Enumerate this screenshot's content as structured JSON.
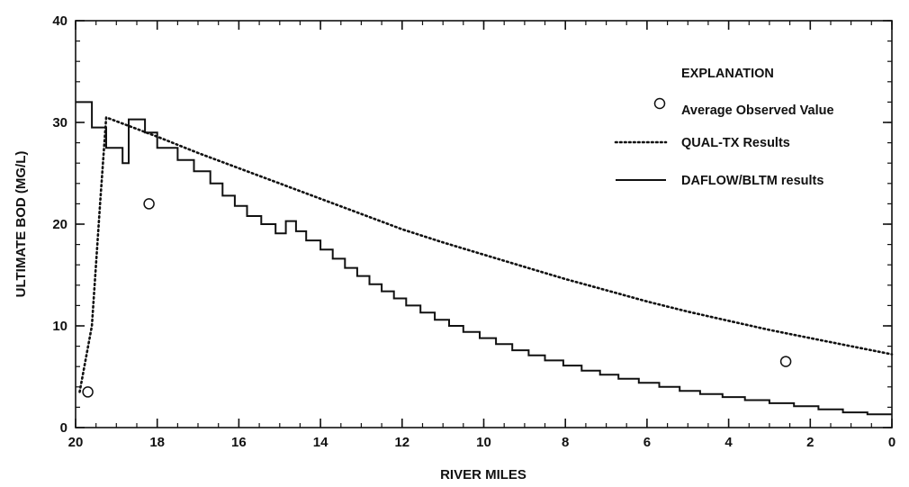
{
  "chart_data": {
    "type": "line",
    "xlabel": "RIVER MILES",
    "ylabel": "ULTIMATE BOD (MG/L)",
    "xlim": [
      20,
      0
    ],
    "ylim": [
      0,
      40
    ],
    "x_ticks": [
      20,
      18,
      16,
      14,
      12,
      10,
      8,
      6,
      4,
      2,
      0
    ],
    "y_ticks": [
      0,
      10,
      20,
      30,
      40
    ],
    "x_tick_labels": [
      "20",
      "18",
      "16",
      "14",
      "12",
      "10",
      "8",
      "6",
      "4",
      "2",
      "0"
    ],
    "y_tick_labels": [
      "0",
      "10",
      "20",
      "30",
      "40"
    ],
    "x_minor_step": 0.5,
    "y_minor_step": 2,
    "grid": false,
    "legend_title": "EXPLANATION",
    "legend_position": "top-right",
    "series": [
      {
        "name": "Average Observed Value",
        "style": "open-circle",
        "points": [
          [
            19.7,
            3.5
          ],
          [
            18.2,
            22
          ],
          [
            2.6,
            6.5
          ]
        ]
      },
      {
        "name": "QUAL-TX Results",
        "style": "dotted",
        "points": [
          [
            19.9,
            3.5
          ],
          [
            19.6,
            10
          ],
          [
            19.4,
            22
          ],
          [
            19.25,
            30.5
          ],
          [
            18,
            28.6
          ],
          [
            17,
            27
          ],
          [
            16,
            25.5
          ],
          [
            15,
            24
          ],
          [
            14,
            22.5
          ],
          [
            13,
            21
          ],
          [
            12,
            19.5
          ],
          [
            11,
            18.2
          ],
          [
            10,
            17
          ],
          [
            9,
            15.8
          ],
          [
            8,
            14.6
          ],
          [
            7,
            13.5
          ],
          [
            6,
            12.4
          ],
          [
            5,
            11.4
          ],
          [
            4,
            10.5
          ],
          [
            3,
            9.6
          ],
          [
            2,
            8.8
          ],
          [
            1,
            8
          ],
          [
            0,
            7.2
          ]
        ]
      },
      {
        "name": "DAFLOW/BLTM results",
        "style": "solid-step",
        "points": [
          [
            20,
            32
          ],
          [
            19.6,
            32
          ],
          [
            19.6,
            29.5
          ],
          [
            19.25,
            29.5
          ],
          [
            19.25,
            27.5
          ],
          [
            18.85,
            27.5
          ],
          [
            18.85,
            26
          ],
          [
            18.7,
            26
          ],
          [
            18.7,
            30.3
          ],
          [
            18.3,
            30.3
          ],
          [
            18.3,
            29
          ],
          [
            18,
            29
          ],
          [
            18,
            27.5
          ],
          [
            17.5,
            27.5
          ],
          [
            17.5,
            26.3
          ],
          [
            17.1,
            26.3
          ],
          [
            17.1,
            25.2
          ],
          [
            16.7,
            25.2
          ],
          [
            16.7,
            24
          ],
          [
            16.4,
            24
          ],
          [
            16.4,
            22.8
          ],
          [
            16.1,
            22.8
          ],
          [
            16.1,
            21.8
          ],
          [
            15.8,
            21.8
          ],
          [
            15.8,
            20.8
          ],
          [
            15.45,
            20.8
          ],
          [
            15.45,
            20
          ],
          [
            15.1,
            20
          ],
          [
            15.1,
            19.1
          ],
          [
            14.85,
            19.1
          ],
          [
            14.85,
            20.3
          ],
          [
            14.6,
            20.3
          ],
          [
            14.6,
            19.3
          ],
          [
            14.35,
            19.3
          ],
          [
            14.35,
            18.4
          ],
          [
            14,
            18.4
          ],
          [
            14,
            17.5
          ],
          [
            13.7,
            17.5
          ],
          [
            13.7,
            16.6
          ],
          [
            13.4,
            16.6
          ],
          [
            13.4,
            15.7
          ],
          [
            13.1,
            15.7
          ],
          [
            13.1,
            14.9
          ],
          [
            12.8,
            14.9
          ],
          [
            12.8,
            14.1
          ],
          [
            12.5,
            14.1
          ],
          [
            12.5,
            13.4
          ],
          [
            12.2,
            13.4
          ],
          [
            12.2,
            12.7
          ],
          [
            11.9,
            12.7
          ],
          [
            11.9,
            12
          ],
          [
            11.55,
            12
          ],
          [
            11.55,
            11.3
          ],
          [
            11.2,
            11.3
          ],
          [
            11.2,
            10.6
          ],
          [
            10.85,
            10.6
          ],
          [
            10.85,
            10
          ],
          [
            10.5,
            10
          ],
          [
            10.5,
            9.4
          ],
          [
            10.1,
            9.4
          ],
          [
            10.1,
            8.8
          ],
          [
            9.7,
            8.8
          ],
          [
            9.7,
            8.2
          ],
          [
            9.3,
            8.2
          ],
          [
            9.3,
            7.6
          ],
          [
            8.9,
            7.6
          ],
          [
            8.9,
            7.1
          ],
          [
            8.5,
            7.1
          ],
          [
            8.5,
            6.6
          ],
          [
            8.05,
            6.6
          ],
          [
            8.05,
            6.1
          ],
          [
            7.6,
            6.1
          ],
          [
            7.6,
            5.6
          ],
          [
            7.15,
            5.6
          ],
          [
            7.15,
            5.2
          ],
          [
            6.7,
            5.2
          ],
          [
            6.7,
            4.8
          ],
          [
            6.2,
            4.8
          ],
          [
            6.2,
            4.4
          ],
          [
            5.7,
            4.4
          ],
          [
            5.7,
            4
          ],
          [
            5.2,
            4
          ],
          [
            5.2,
            3.6
          ],
          [
            4.7,
            3.6
          ],
          [
            4.7,
            3.3
          ],
          [
            4.15,
            3.3
          ],
          [
            4.15,
            3
          ],
          [
            3.6,
            3
          ],
          [
            3.6,
            2.7
          ],
          [
            3,
            2.7
          ],
          [
            3,
            2.4
          ],
          [
            2.4,
            2.4
          ],
          [
            2.4,
            2.1
          ],
          [
            1.8,
            2.1
          ],
          [
            1.8,
            1.8
          ],
          [
            1.2,
            1.8
          ],
          [
            1.2,
            1.5
          ],
          [
            0.6,
            1.5
          ],
          [
            0.6,
            1.3
          ],
          [
            0,
            1.3
          ]
        ]
      }
    ]
  }
}
